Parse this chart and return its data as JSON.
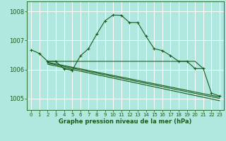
{
  "title": "Graphe pression niveau de la mer (hPa)",
  "background_color": "#b0e8e0",
  "grid_color": "#ffffff",
  "line_color": "#1a5c1a",
  "xlim": [
    -0.5,
    23.5
  ],
  "ylim": [
    1004.6,
    1008.35
  ],
  "yticks": [
    1005,
    1006,
    1007,
    1008
  ],
  "xticks": [
    0,
    1,
    2,
    3,
    4,
    5,
    6,
    7,
    8,
    9,
    10,
    11,
    12,
    13,
    14,
    15,
    16,
    17,
    18,
    19,
    20,
    21,
    22,
    23
  ],
  "series": [
    {
      "x": [
        0,
        1,
        2,
        3,
        4,
        5,
        6,
        7,
        8,
        9,
        10,
        11,
        12,
        13,
        14,
        15,
        16,
        17,
        18,
        19,
        20,
        21,
        22,
        23
      ],
      "y": [
        1006.68,
        1006.55,
        1006.28,
        1006.28,
        1006.02,
        1005.97,
        1006.47,
        1006.72,
        1007.22,
        1007.68,
        1007.88,
        1007.87,
        1007.62,
        1007.62,
        1007.15,
        1006.72,
        1006.65,
        1006.48,
        1006.28,
        1006.28,
        1006.03,
        1006.03,
        1005.18,
        1005.08
      ],
      "has_marker": true
    },
    {
      "x": [
        2,
        20,
        21
      ],
      "y": [
        1006.28,
        1006.28,
        1006.03
      ],
      "has_marker": false
    },
    {
      "x": [
        2,
        23
      ],
      "y": [
        1006.25,
        1005.05
      ],
      "has_marker": false
    },
    {
      "x": [
        2,
        23
      ],
      "y": [
        1006.22,
        1005.0
      ],
      "has_marker": false
    },
    {
      "x": [
        2,
        23
      ],
      "y": [
        1006.18,
        1004.92
      ],
      "has_marker": false
    }
  ]
}
